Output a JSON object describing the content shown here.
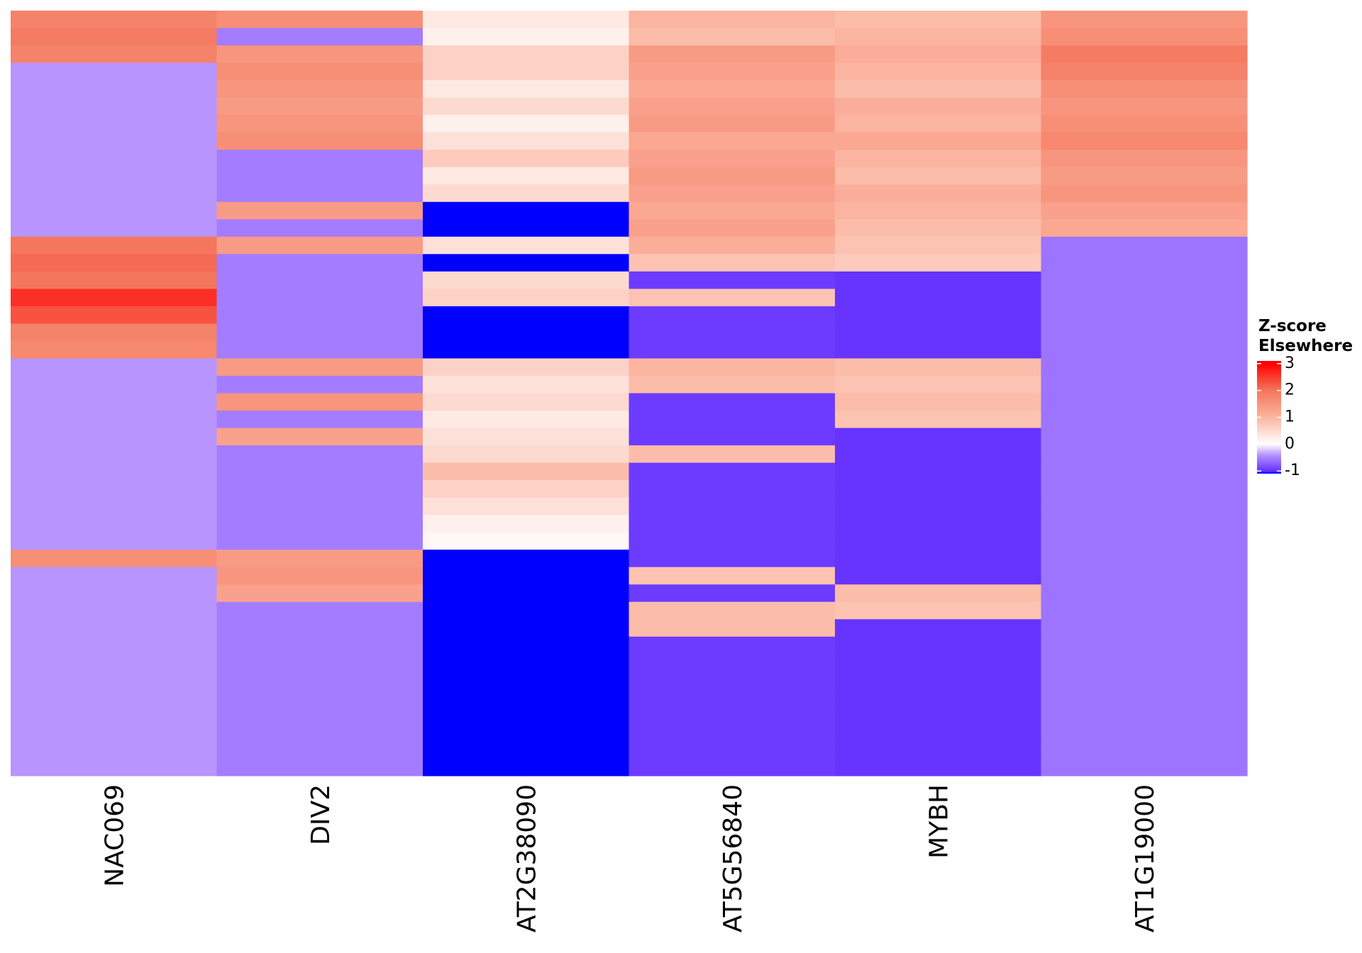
{
  "chart_data": {
    "type": "heatmap",
    "legend_title": [
      "Z-score",
      "Elsewhere"
    ],
    "legend_ticks": [
      3,
      2,
      1,
      0,
      -1
    ],
    "colorbar_lim": [
      -1.1,
      3.1
    ],
    "colorscale": [
      {
        "value": -1.3,
        "color": "#0000ff"
      },
      {
        "value": -1,
        "color": "#6633ff"
      },
      {
        "value": -0.4,
        "color": "#b894ff"
      },
      {
        "value": 0,
        "color": "#ffffff"
      },
      {
        "value": 1,
        "color": "#fbb4a0"
      },
      {
        "value": 2,
        "color": "#f4765c"
      },
      {
        "value": 3,
        "color": "#ff0000"
      }
    ],
    "series": [
      {
        "name": "NAC069",
        "values": [
          1.8,
          1.9,
          1.8,
          -0.4,
          -0.4,
          -0.4,
          -0.4,
          -0.4,
          -0.4,
          -0.4,
          -0.4,
          -0.4,
          -0.4,
          2.0,
          2.1,
          2.0,
          2.6,
          2.3,
          1.8,
          1.7,
          -0.4,
          -0.4,
          -0.4,
          -0.4,
          -0.4,
          -0.4,
          -0.4,
          -0.4,
          -0.4,
          -0.4,
          -0.4,
          1.6,
          -0.4,
          -0.4,
          -0.4,
          -0.4,
          -0.4,
          -0.4,
          -0.4,
          -0.4,
          -0.4,
          -0.4,
          -0.4,
          -0.4
        ]
      },
      {
        "name": "DIV2",
        "values": [
          1.6,
          -0.55,
          1.5,
          1.6,
          1.5,
          1.4,
          1.5,
          1.6,
          -0.55,
          -0.55,
          -0.55,
          1.4,
          -0.55,
          1.4,
          -0.55,
          -0.55,
          -0.55,
          -0.55,
          -0.55,
          -0.55,
          1.4,
          -0.55,
          1.5,
          -0.55,
          1.3,
          -0.55,
          -0.55,
          -0.55,
          -0.55,
          -0.55,
          -0.55,
          1.4,
          1.5,
          1.3,
          -0.55,
          -0.55,
          -0.55,
          -0.55,
          -0.55,
          -0.55,
          -0.55,
          -0.55,
          -0.55,
          -0.55
        ]
      },
      {
        "name": "AT2G38090",
        "values": [
          0.3,
          0.2,
          0.6,
          0.6,
          0.3,
          0.5,
          0.2,
          0.4,
          0.7,
          0.3,
          0.5,
          -1.3,
          -1.3,
          0.4,
          -1.3,
          0.5,
          0.6,
          -1.3,
          -1.3,
          -1.3,
          0.6,
          0.4,
          0.5,
          0.3,
          0.4,
          0.5,
          0.9,
          0.6,
          0.4,
          0.2,
          0.1,
          -1.3,
          -1.3,
          -1.3,
          -1.3,
          -1.3,
          -1.3,
          -1.3,
          -1.3,
          -1.3,
          -1.3,
          -1.3,
          -1.3,
          -1.3
        ]
      },
      {
        "name": "AT5G56840",
        "values": [
          1.0,
          0.9,
          1.4,
          1.3,
          1.2,
          1.3,
          1.4,
          1.2,
          1.3,
          1.4,
          1.3,
          1.2,
          1.3,
          1.1,
          0.8,
          -0.95,
          0.8,
          -0.95,
          -0.95,
          -0.95,
          1.0,
          0.9,
          -0.95,
          -0.95,
          -0.95,
          0.9,
          -0.95,
          -0.95,
          -0.95,
          -0.95,
          -0.95,
          -0.95,
          0.8,
          -0.95,
          0.9,
          0.9,
          -0.95,
          -0.95,
          -0.95,
          -0.95,
          -0.95,
          -0.95,
          -0.95,
          -0.95
        ]
      },
      {
        "name": "MYBH",
        "values": [
          0.9,
          1.0,
          1.1,
          1.0,
          0.9,
          1.1,
          1.0,
          1.2,
          1.0,
          0.9,
          1.1,
          1.0,
          0.9,
          0.8,
          0.7,
          -1.0,
          -1.0,
          -1.0,
          -1.0,
          -1.0,
          0.9,
          0.8,
          0.9,
          0.8,
          -1.0,
          -1.0,
          -1.0,
          -1.0,
          -1.0,
          -1.0,
          -1.0,
          -1.0,
          -1.0,
          0.9,
          0.8,
          -1.0,
          -1.0,
          -1.0,
          -1.0,
          -1.0,
          -1.0,
          -1.0,
          -1.0,
          -1.0
        ]
      },
      {
        "name": "AT1G19000",
        "values": [
          1.5,
          1.6,
          1.9,
          1.8,
          1.6,
          1.5,
          1.6,
          1.7,
          1.5,
          1.4,
          1.5,
          1.3,
          1.2,
          -0.6,
          -0.6,
          -0.6,
          -0.6,
          -0.6,
          -0.6,
          -0.6,
          -0.6,
          -0.6,
          -0.6,
          -0.6,
          -0.6,
          -0.6,
          -0.6,
          -0.6,
          -0.6,
          -0.6,
          -0.6,
          -0.6,
          -0.6,
          -0.6,
          -0.6,
          -0.6,
          -0.6,
          -0.6,
          -0.6,
          -0.6,
          -0.6,
          -0.6,
          -0.6,
          -0.6
        ]
      }
    ]
  }
}
